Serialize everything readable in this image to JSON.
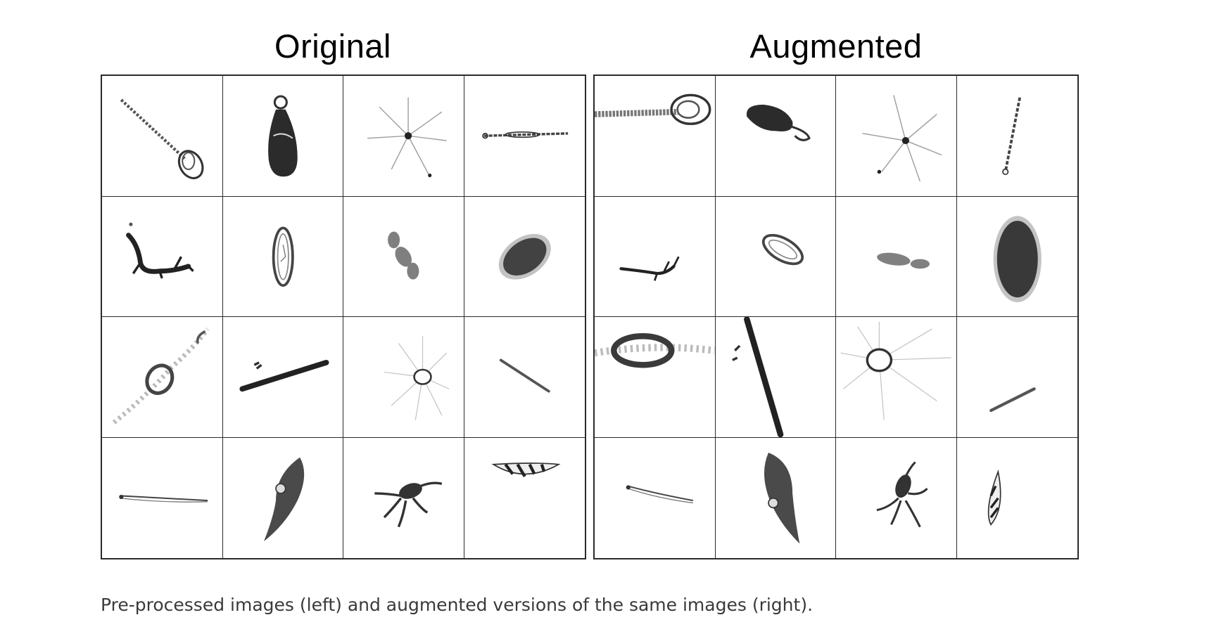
{
  "figure": {
    "left_title": "Original",
    "right_title": "Augmented",
    "caption": "Pre-processed images (left) and augmented versions of the same images (right).",
    "grid": {
      "rows": 4,
      "cols": 4
    },
    "original_cells": [
      "chain-diatom-icon",
      "bottle-shaped-organism-icon",
      "radiating-spines-icon",
      "thin-chain-icon",
      "branched-organism-icon",
      "oval-ring-icon",
      "blurry-blob-icon",
      "dark-ellipse-icon",
      "ring-with-spray-icon",
      "long-rod-icon",
      "ring-with-spines-icon",
      "thin-diagonal-line-icon",
      "thin-needle-icon",
      "squid-like-organism-icon",
      "tentacled-organism-icon",
      "striped-fan-icon"
    ],
    "augmented_cells": [
      "chain-diatom-icon",
      "bottle-shaped-organism-icon",
      "radiating-spines-icon",
      "thin-chain-icon",
      "branched-organism-icon",
      "oval-ring-icon",
      "blurry-blob-icon",
      "dark-ellipse-icon",
      "ring-with-spray-icon",
      "long-rod-icon",
      "ring-with-spines-icon",
      "thin-diagonal-line-icon",
      "thin-needle-icon",
      "squid-like-organism-icon",
      "tentacled-organism-icon",
      "striped-fan-icon"
    ]
  }
}
